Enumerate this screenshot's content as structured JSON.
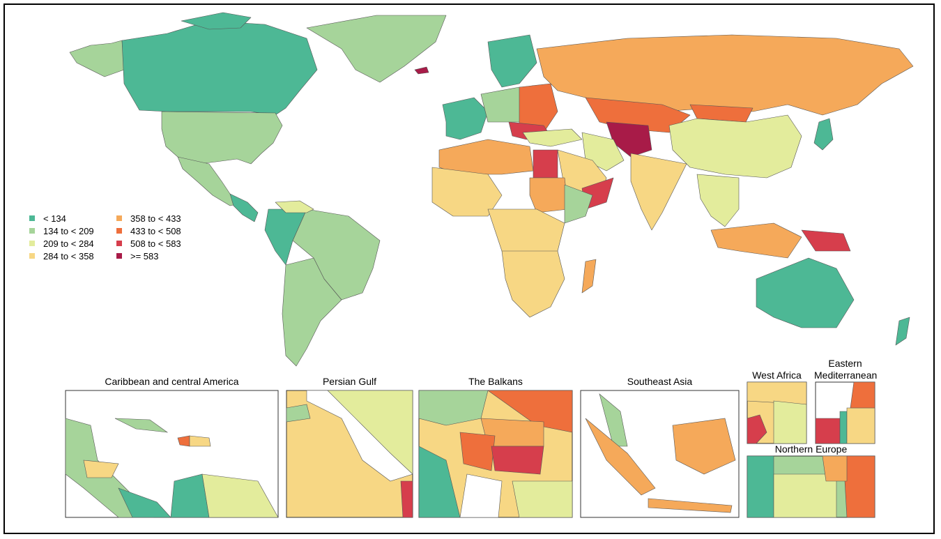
{
  "legend": [
    {
      "label": "< 134",
      "color": "#4db895"
    },
    {
      "label": "134 to < 209",
      "color": "#a6d49a"
    },
    {
      "label": "209 to < 284",
      "color": "#e3ec9c"
    },
    {
      "label": "284 to < 358",
      "color": "#f7d784"
    },
    {
      "label": "358 to < 433",
      "color": "#f5a95a"
    },
    {
      "label": "433 to < 508",
      "color": "#ee6f3c"
    },
    {
      "label": "508 to < 583",
      "color": "#d63e4c"
    },
    {
      "label": ">= 583",
      "color": "#a81b48"
    }
  ],
  "insets": [
    {
      "title": "Caribbean and central America"
    },
    {
      "title": "Persian Gulf"
    },
    {
      "title": "The Balkans"
    },
    {
      "title": "Southeast Asia"
    },
    {
      "title": "West Africa"
    },
    {
      "title": "Eastern Mediterranean"
    },
    {
      "title": "Northern Europe"
    }
  ]
}
